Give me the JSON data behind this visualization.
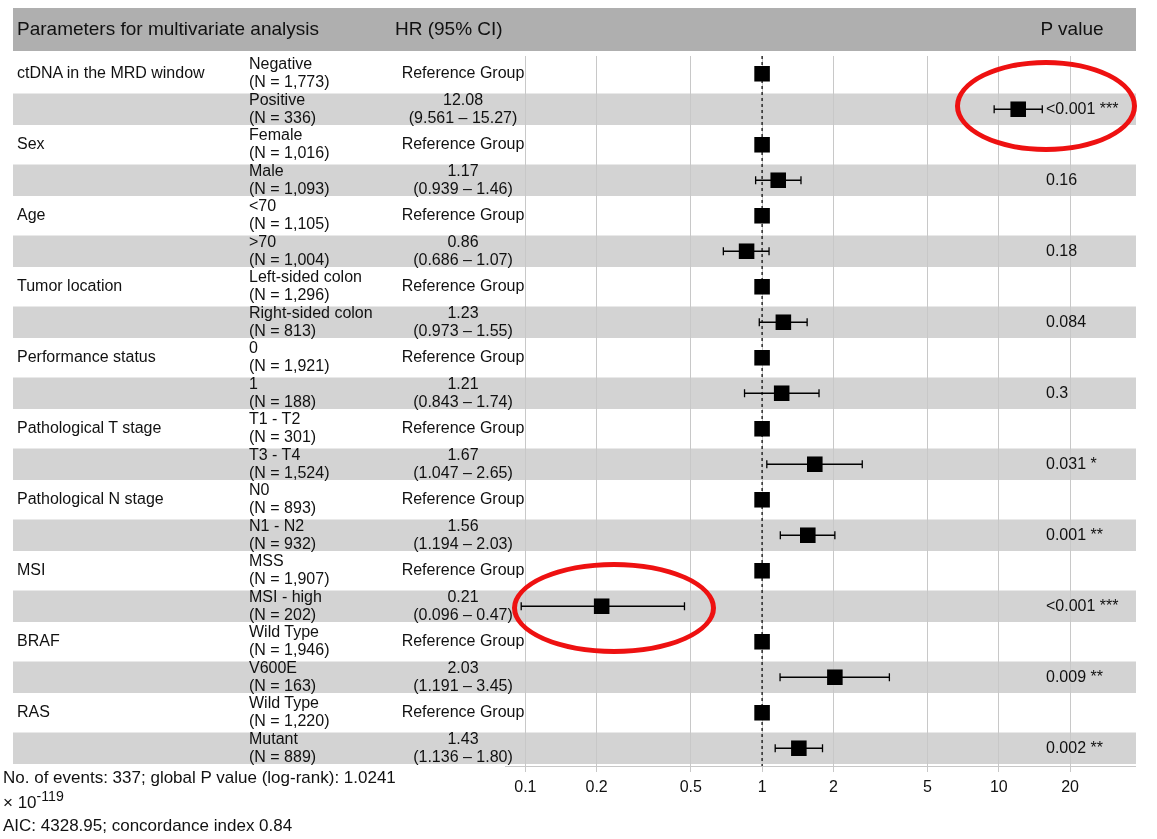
{
  "chart_data": {
    "type": "scatter",
    "orientation": "horizontal",
    "ylabel": "Parameters for multivariate analysis",
    "xlabel": "HR (95% CI)",
    "y2label": "P value",
    "categories": [
      "Negative\n(N = 1,773)",
      "Positive\n(N = 336)",
      "Female\n(N = 1,016)",
      "Male\n(N = 1,093)",
      "<70\n(N = 1,105)",
      ">70\n(N = 1,004)",
      "Left-sided colon\n(N = 1,296)",
      "Right-sided colon\n(N = 813)",
      "0\n(N = 1,921)",
      "1\n(N = 188)",
      "T1 - T2\n(N = 301)",
      "T3 - T4\n(N = 1,524)",
      "N0\n(N = 893)",
      "N1 - N2\n(N = 932)",
      "MSS\n(N = 1,907)",
      "MSI - high\n(N = 202)",
      "Wild Type\n(N = 1,946)",
      "V600E\n(N = 163)",
      "Wild Type\n(N = 1,220)",
      "Mutant\n(N = 889)"
    ],
    "values": [
      1,
      12.08,
      1,
      1.17,
      1,
      0.86,
      1,
      1.23,
      1,
      1.21,
      1,
      1.67,
      1,
      1.56,
      1,
      0.21,
      1,
      2.03,
      1,
      1.43
    ],
    "errors": [
      null,
      [
        9.561,
        15.27
      ],
      null,
      [
        0.939,
        1.46
      ],
      null,
      [
        0.686,
        1.07
      ],
      null,
      [
        0.973,
        1.55
      ],
      null,
      [
        0.843,
        1.74
      ],
      null,
      [
        1.047,
        2.65
      ],
      null,
      [
        1.194,
        2.03
      ],
      null,
      [
        0.096,
        0.47
      ],
      null,
      [
        1.191,
        3.45
      ],
      null,
      [
        1.136,
        1.8
      ]
    ],
    "color": "#000000",
    "marker": "square",
    "log": "x",
    "xlim": [
      0.082,
      38
    ],
    "xticks": [
      0.1,
      0.2,
      0.5,
      1,
      2,
      5,
      10,
      20
    ],
    "grid": "x",
    "ref_lines": [
      {
        "axis": "x",
        "value": 1,
        "line_style": "dashed",
        "color": "#000000"
      }
    ],
    "bands": [
      {
        "axis": "y",
        "from": "Positive\n(N = 336)",
        "to": "Positive\n(N = 336)",
        "color": "#d3d3d3"
      },
      {
        "axis": "y",
        "from": "Male\n(N = 1,093)",
        "to": "Male\n(N = 1,093)",
        "color": "#d3d3d3"
      },
      {
        "axis": "y",
        "from": ">70\n(N = 1,004)",
        "to": ">70\n(N = 1,004)",
        "color": "#d3d3d3"
      },
      {
        "axis": "y",
        "from": "Right-sided colon\n(N = 813)",
        "to": "Right-sided colon\n(N = 813)",
        "color": "#d3d3d3"
      },
      {
        "axis": "y",
        "from": "1\n(N = 188)",
        "to": "1\n(N = 188)",
        "color": "#d3d3d3"
      },
      {
        "axis": "y",
        "from": "T3 - T4\n(N = 1,524)",
        "to": "T3 - T4\n(N = 1,524)",
        "color": "#d3d3d3"
      },
      {
        "axis": "y",
        "from": "N1 - N2\n(N = 932)",
        "to": "N1 - N2\n(N = 932)",
        "color": "#d3d3d3"
      },
      {
        "axis": "y",
        "from": "MSI - high\n(N = 202)",
        "to": "MSI - high\n(N = 202)",
        "color": "#d3d3d3"
      },
      {
        "axis": "y",
        "from": "V600E\n(N = 163)",
        "to": "V600E\n(N = 163)",
        "color": "#d3d3d3"
      },
      {
        "axis": "y",
        "from": "Mutant\n(N = 889)",
        "to": "Mutant\n(N = 889)",
        "color": "#d3d3d3"
      }
    ],
    "annotations": [
      "ctDNA in the MRD window",
      "Sex",
      "Age",
      "Tumor location",
      "Performance status",
      "Pathological T stage",
      "Pathological N stage",
      "MSI",
      "BRAF",
      "RAS",
      "Reference Group",
      "12.08\n(9.561 – 15.27)",
      "Reference Group",
      "1.17\n(0.939 – 1.46)",
      "Reference Group",
      "0.86\n(0.686 – 1.07)",
      "Reference Group",
      "1.23\n(0.973 – 1.55)",
      "Reference Group",
      "1.21\n(0.843 – 1.74)",
      "Reference Group",
      "1.67\n(1.047 – 2.65)",
      "Reference Group",
      "1.56\n(1.194 – 2.03)",
      "Reference Group",
      "0.21\n(0.096 – 0.47)",
      "Reference Group",
      "2.03\n(1.191 – 3.45)",
      "Reference Group",
      "1.43\n(1.136 – 1.80)",
      "<0.001 ***",
      "0.16",
      "0.18",
      "0.084",
      "0.3",
      "0.031 *",
      "0.001 **",
      "<0.001 ***",
      "0.009 **",
      "0.002 **",
      "No. of events: 337; global P value (log-rank): 1.0241 × 10$^{-119}$",
      "AIC: 4328.95; concordance index 0.84"
    ]
  }
}
